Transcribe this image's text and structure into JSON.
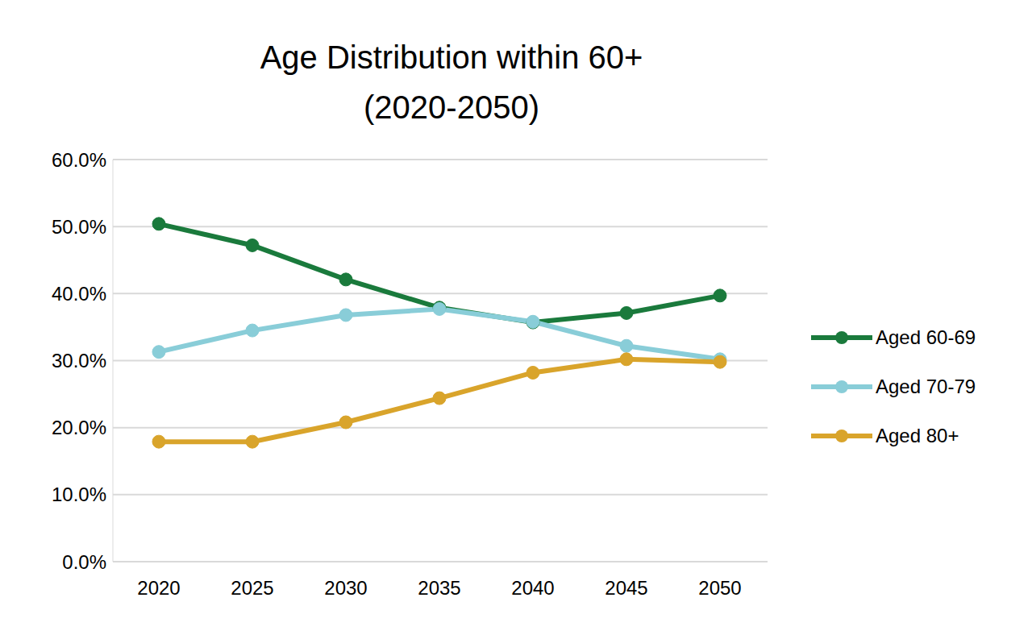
{
  "chart_data": {
    "type": "line",
    "title": "Age Distribution within 60+\n(2020-2050)",
    "categories": [
      "2020",
      "2025",
      "2030",
      "2035",
      "2040",
      "2045",
      "2050"
    ],
    "series": [
      {
        "name": "Aged 60-69",
        "color": "#1a7a3c",
        "marker": "circle",
        "values": [
          50.4,
          47.2,
          42.1,
          37.9,
          35.7,
          37.1,
          39.7
        ]
      },
      {
        "name": "Aged 70-79",
        "color": "#89cdd8",
        "marker": "circle",
        "values": [
          31.3,
          34.5,
          36.8,
          37.7,
          35.8,
          32.2,
          30.2
        ]
      },
      {
        "name": "Aged 80+",
        "color": "#d9a42b",
        "marker": "circle",
        "values": [
          17.9,
          17.9,
          20.8,
          24.4,
          28.2,
          30.2,
          29.8
        ]
      }
    ],
    "ylim": [
      0,
      60
    ],
    "yticks": [
      {
        "value": 0,
        "label": "0.0%"
      },
      {
        "value": 10,
        "label": "10.0%"
      },
      {
        "value": 20,
        "label": "20.0%"
      },
      {
        "value": 30,
        "label": "30.0%"
      },
      {
        "value": 40,
        "label": "40.0%"
      },
      {
        "value": 50,
        "label": "50.0%"
      },
      {
        "value": 60,
        "label": "60.0%"
      }
    ],
    "grid": true,
    "legend": "right"
  }
}
